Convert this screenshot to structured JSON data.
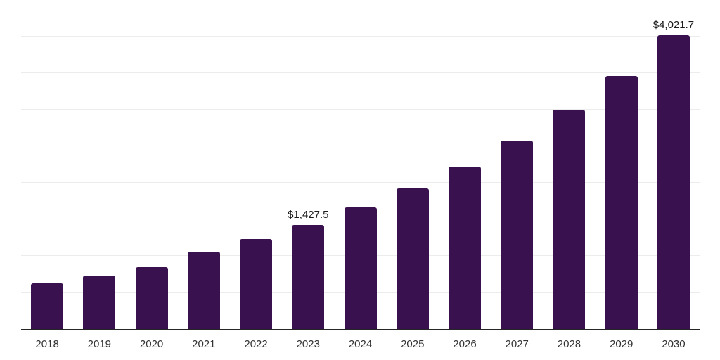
{
  "chart_data": {
    "type": "bar",
    "title": "",
    "xlabel": "",
    "ylabel": "",
    "categories": [
      "2018",
      "2019",
      "2020",
      "2021",
      "2022",
      "2023",
      "2024",
      "2025",
      "2026",
      "2027",
      "2028",
      "2029",
      "2030"
    ],
    "values": [
      625,
      730,
      850,
      1055,
      1230,
      1427.5,
      1660,
      1925,
      2220,
      2580,
      3000,
      3460,
      4021.7
    ],
    "data_labels": [
      "",
      "",
      "",
      "",
      "",
      "$1,427.5",
      "",
      "",
      "",
      "",
      "",
      "",
      "$4,021.7"
    ],
    "ylim": [
      0,
      4500
    ],
    "gridline_step": 500,
    "grid": true,
    "legend": false,
    "tick_labels_axis": "x"
  },
  "colors": {
    "bar": "#38114e",
    "axis": "#262626",
    "gridline": "#ececec",
    "data_label": "#1a1a1a",
    "tick_label": "#333333",
    "background": "#ffffff"
  }
}
